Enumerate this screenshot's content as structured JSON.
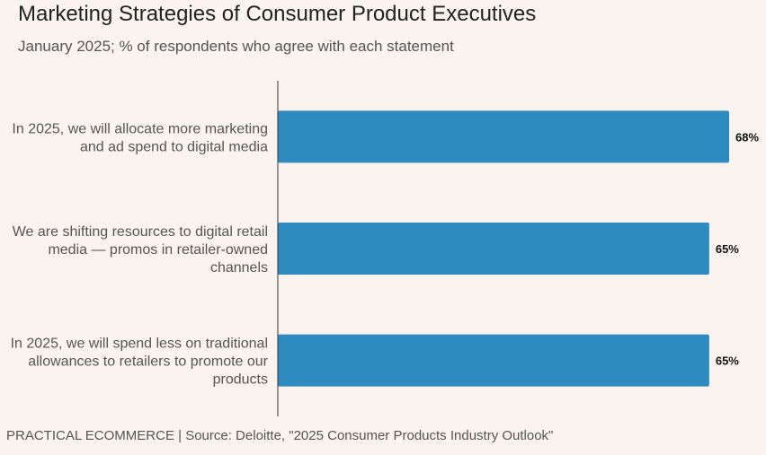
{
  "chart_data": {
    "type": "bar",
    "orientation": "horizontal",
    "title": "Marketing Strategies of Consumer Product Executives",
    "subtitle": "January 2025; % of respondents who agree with each statement",
    "categories": [
      [
        "In 2025, we will allocate more marketing",
        "and ad spend to digital media"
      ],
      [
        "We are shifting resources to digital retail",
        "media — promos in retailer-owned",
        "channels"
      ],
      [
        "In 2025, we will spend less on traditional",
        "allowances to retailers to promote our",
        "products"
      ]
    ],
    "values": [
      68,
      65,
      65
    ],
    "value_labels": [
      "68%",
      "65%",
      "65%"
    ],
    "xlim": [
      0,
      68
    ],
    "grid": false,
    "bar_color": "#2e8bc0",
    "xlabel": "",
    "ylabel": ""
  },
  "footer": "PRACTICAL ECOMMERCE | Source: Deloitte, \"2025 Consumer Products Industry Outlook\""
}
